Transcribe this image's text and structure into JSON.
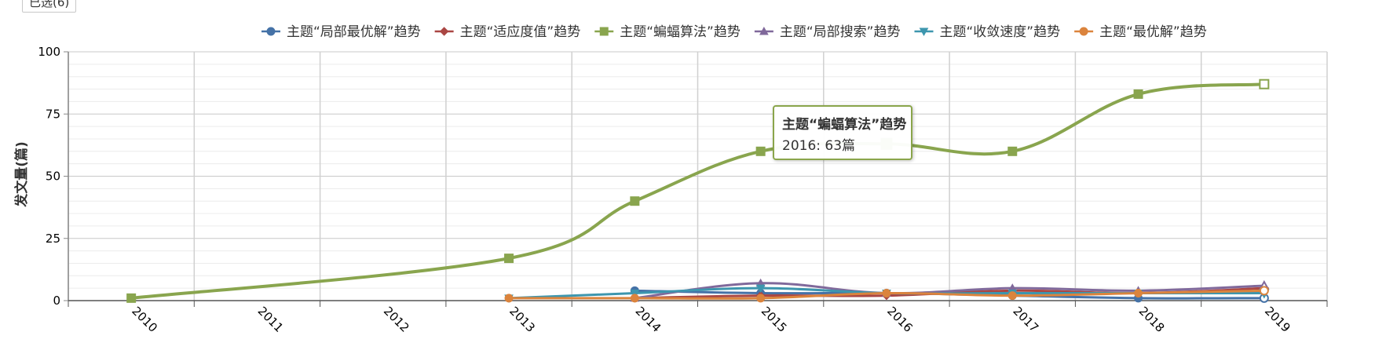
{
  "filter": {
    "selected_label": "已选(6)"
  },
  "tooltip": {
    "series": "主题“蝙蝠算法”趋势",
    "text": "2016: 63篇"
  },
  "chart_data": {
    "type": "line",
    "ylabel": "发文量(篇)",
    "xlabel": "",
    "title": "",
    "ylim": [
      0,
      100
    ],
    "yticks": [
      0,
      25,
      50,
      75,
      100
    ],
    "x": [
      "2010",
      "2011",
      "2012",
      "2013",
      "2014",
      "2015",
      "2016",
      "2017",
      "2018",
      "2019"
    ],
    "legend_position": "top",
    "grid": true,
    "series": [
      {
        "name": "主题“局部最优解”趋势",
        "color": "#4572a7",
        "marker": "circle",
        "values": [
          null,
          null,
          null,
          null,
          4,
          3,
          3,
          2,
          1,
          1
        ]
      },
      {
        "name": "主题“适应度值”趋势",
        "color": "#aa4643",
        "marker": "diamond",
        "values": [
          null,
          null,
          null,
          null,
          1,
          2,
          2,
          4,
          3,
          5
        ]
      },
      {
        "name": "主题“蝙蝠算法”趋势",
        "color": "#89a54e",
        "marker": "square",
        "values": [
          1,
          null,
          null,
          17,
          40,
          60,
          63,
          60,
          83,
          87
        ]
      },
      {
        "name": "主题“局部搜索”趋势",
        "color": "#80699b",
        "marker": "triangle",
        "values": [
          null,
          null,
          null,
          null,
          1,
          7,
          3,
          5,
          4,
          6
        ]
      },
      {
        "name": "主题“收敛速度”趋势",
        "color": "#3d96ae",
        "marker": "triangle-down",
        "values": [
          null,
          null,
          null,
          1,
          3,
          5,
          3,
          3,
          3,
          3
        ]
      },
      {
        "name": "主题“最优解”趋势",
        "color": "#db843d",
        "marker": "circle",
        "values": [
          null,
          null,
          null,
          1,
          1,
          1,
          3,
          2,
          3,
          4
        ]
      }
    ]
  }
}
